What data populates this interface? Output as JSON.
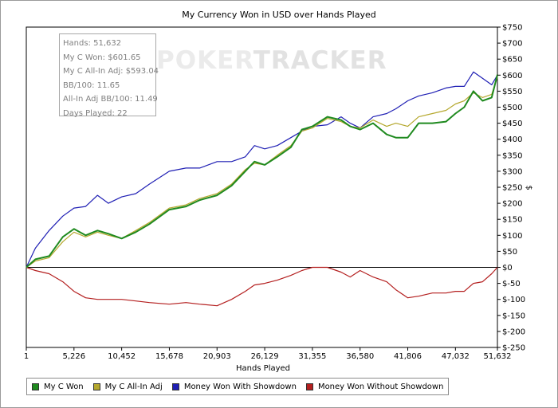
{
  "chart_data": {
    "type": "line",
    "title": "My Currency Won in USD over Hands Played",
    "xlabel": "Hands Played",
    "ylabel": "$",
    "xlim": [
      1,
      51632
    ],
    "ylim": [
      -250,
      750
    ],
    "grid": false,
    "legend_placement": "bottom",
    "x_ticks": [
      1,
      5226,
      10452,
      15678,
      20903,
      26129,
      31355,
      36580,
      41806,
      47032,
      51632
    ],
    "x_tick_labels": [
      "1",
      "5,226",
      "10,452",
      "15,678",
      "20,903",
      "26,129",
      "31,355",
      "36,580",
      "41,806",
      "47,032",
      "51,632"
    ],
    "y_ticks": [
      -250,
      -200,
      -150,
      -100,
      -50,
      0,
      50,
      100,
      150,
      200,
      250,
      300,
      350,
      400,
      450,
      500,
      550,
      600,
      650,
      700,
      750
    ],
    "y_tick_labels": [
      "$-250",
      "$-200",
      "$-150",
      "$-100",
      "$-50",
      "$0",
      "$50",
      "$100",
      "$150",
      "$200",
      "$250",
      "$300",
      "$350",
      "$400",
      "$450",
      "$500",
      "$550",
      "$600",
      "$650",
      "$700",
      "$750"
    ],
    "x": [
      1,
      1000,
      2500,
      4000,
      5226,
      6500,
      7800,
      9000,
      10452,
      12000,
      13500,
      15678,
      17500,
      19000,
      20903,
      22500,
      24000,
      25000,
      26129,
      27500,
      29000,
      30200,
      31355,
      33000,
      34500,
      35500,
      36580,
      38000,
      39500,
      40500,
      41806,
      43000,
      44500,
      46000,
      47032,
      48000,
      49000,
      50000,
      51000,
      51632
    ],
    "series": [
      {
        "name": "My C Won",
        "color": "#1f8a1f",
        "values": [
          0,
          25,
          35,
          95,
          120,
          100,
          115,
          105,
          90,
          110,
          135,
          180,
          190,
          210,
          225,
          255,
          300,
          330,
          320,
          345,
          375,
          430,
          440,
          470,
          460,
          440,
          430,
          450,
          415,
          405,
          405,
          450,
          450,
          455,
          480,
          500,
          550,
          520,
          530,
          601.65
        ]
      },
      {
        "name": "My C All-In Adj",
        "color": "#b5a82e",
        "values": [
          0,
          20,
          30,
          80,
          110,
          95,
          110,
          100,
          90,
          115,
          140,
          185,
          195,
          215,
          230,
          260,
          305,
          325,
          320,
          350,
          380,
          425,
          435,
          465,
          455,
          440,
          435,
          460,
          440,
          450,
          440,
          470,
          480,
          490,
          510,
          520,
          545,
          530,
          540,
          593.04
        ]
      },
      {
        "name": "Money Won With Showdown",
        "color": "#1f1fb4",
        "values": [
          0,
          60,
          115,
          160,
          185,
          190,
          225,
          200,
          220,
          230,
          260,
          300,
          310,
          310,
          330,
          330,
          345,
          380,
          370,
          380,
          405,
          425,
          440,
          445,
          470,
          450,
          435,
          470,
          480,
          495,
          520,
          535,
          545,
          560,
          565,
          565,
          610,
          590,
          570,
          600
        ]
      },
      {
        "name": "Money Won Without Showdown",
        "color": "#b41f1f",
        "values": [
          0,
          -10,
          -20,
          -45,
          -75,
          -95,
          -100,
          -100,
          -100,
          -105,
          -110,
          -115,
          -110,
          -115,
          -120,
          -100,
          -75,
          -55,
          -50,
          -40,
          -25,
          -10,
          0,
          0,
          -15,
          -30,
          -10,
          -30,
          -45,
          -70,
          -95,
          -90,
          -80,
          -80,
          -75,
          -75,
          -50,
          -45,
          -20,
          0
        ]
      }
    ]
  },
  "info_box": {
    "lines": [
      "Hands: 51,632",
      "My C Won: $601.65",
      "My C All-In Adj: $593.04",
      "BB/100: 11.65",
      "All-In Adj BB/100: 11.49",
      "Days Played: 22"
    ]
  },
  "watermark": {
    "part1": "POKER",
    "part2": "TRACKER"
  },
  "legend": {
    "items": [
      {
        "label": "My C Won",
        "color": "#1f8a1f"
      },
      {
        "label": "My C All-In Adj",
        "color": "#b5a82e"
      },
      {
        "label": "Money Won With Showdown",
        "color": "#1f1fb4"
      },
      {
        "label": "Money Won Without Showdown",
        "color": "#b41f1f"
      }
    ]
  }
}
